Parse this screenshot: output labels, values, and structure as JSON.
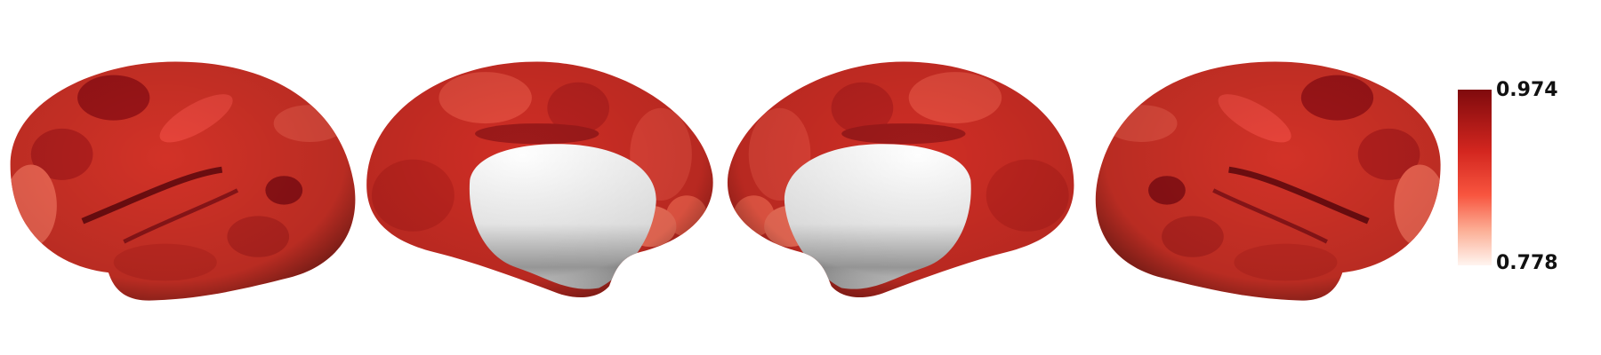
{
  "colorbar": {
    "max": 0.974,
    "min": 0.778
  }
}
